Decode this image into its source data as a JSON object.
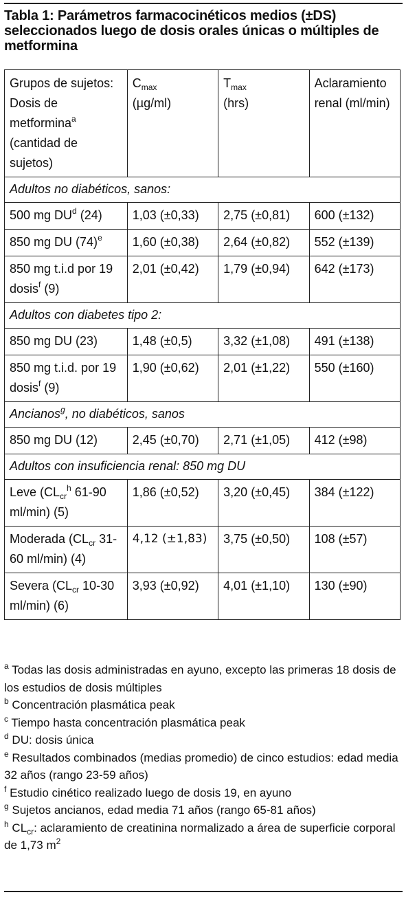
{
  "title": "Tabla 1: Parámetros farmacocinéticos medios (±DS) seleccionados luego de dosis orales únicas o múltiples de metformina",
  "header": {
    "col1_a": "Grupos de sujetos: Dosis de metformina",
    "col1_sup": "a",
    "col1_b": "(cantidad de sujetos)",
    "col2_main": "C",
    "col2_sub": "max",
    "col2_unit": "(µg/ml)",
    "col3_main": "T",
    "col3_sub": "max",
    "col3_unit": "(hrs)",
    "col4": "Aclaramiento renal (ml/min)"
  },
  "sections": {
    "s1": "Adultos no diabéticos, sanos:",
    "s2": "Adultos con diabetes tipo 2:",
    "s3_a": "Ancianos",
    "s3_sup": "g",
    "s3_b": ", no diabéticos, sanos",
    "s4": "Adultos con insuficiencia renal: 850 mg DU"
  },
  "rows": {
    "r1": {
      "a": "500 mg DU",
      "sup": "d",
      "b": " (24)",
      "cmax": "1,03 (±0,33)",
      "tmax": "2,75 (±0,81)",
      "cl": "600 (±132)"
    },
    "r2": {
      "a": "850 mg DU (74)",
      "sup": "e",
      "cmax": "1,60 (±0,38)",
      "tmax": "2,64 (±0,82)",
      "cl": "552 (±139)"
    },
    "r3": {
      "a": "850 mg t.i.d por 19 dosis",
      "sup": "f",
      "b": " (9)",
      "cmax": "2,01 (±0,42)",
      "tmax": "1,79 (±0,94)",
      "cl": "642 (±173)"
    },
    "r4": {
      "a": "850 mg DU (23)",
      "cmax": "1,48 (±0,5)",
      "tmax": "3,32 (±1,08)",
      "cl": "491 (±138)"
    },
    "r5": {
      "a": "850 mg t.i.d. por 19 dosis",
      "sup": "f",
      "b": " (9)",
      "cmax": "1,90 (±0,62)",
      "tmax": "2,01 (±1,22)",
      "cl": "550 (±160)"
    },
    "r6": {
      "a": "850 mg DU (12)",
      "cmax": "2,45 (±0,70)",
      "tmax": "2,71 (±1,05)",
      "cl": "412 (±98)"
    },
    "r7": {
      "a": " Leve (CL",
      "sub": "cr",
      "sup": "h",
      "b": " 61-90 ml/min) (5)",
      "cmax": "1,86 (±0,52)",
      "tmax": "3,20 (±0,45)",
      "cl": "384 (±122)"
    },
    "r8": {
      "a": "Moderada (CL",
      "sub": "cr",
      "b": " 31-60 ml/min) (4)",
      "cmax": "4,12 (±1,83)",
      "tmax": "3,75 (±0,50)",
      "cl": "108 (±57)"
    },
    "r9": {
      "a": "Severa (CL",
      "sub": "cr",
      "b": " 10-30 ml/min) (6)",
      "cmax": "3,93 (±0,92)",
      "tmax": "4,01 (±1,10)",
      "cl": "130 (±90)"
    }
  },
  "footnotes": {
    "a": {
      "mark": "a",
      "text": " Todas las dosis administradas en ayuno, excepto las primeras 18 dosis de los estudios de dosis múltiples"
    },
    "b": {
      "mark": "b",
      "text": "  Concentración plasmática peak"
    },
    "c": {
      "mark": "c",
      "text": "  Tiempo hasta concentración plasmática peak"
    },
    "d": {
      "mark": "d",
      "text": "  DU: dosis única"
    },
    "e": {
      "mark": "e",
      "text": "  Resultados combinados (medias promedio) de cinco estudios: edad media 32 años (rango 23-59 años)"
    },
    "f": {
      "mark": "f",
      "text": "  Estudio cinético realizado luego de dosis 19, en ayuno"
    },
    "g": {
      "mark": "g",
      "text": "  Sujetos ancianos, edad media 71 años (rango 65-81 años)"
    },
    "h": {
      "mark": "h",
      "text_a": "  CL",
      "sub": "cr",
      "text_b": ": aclaramiento de creatinina normalizado a área de superficie corporal de 1,73 m",
      "sup2": "2"
    }
  }
}
